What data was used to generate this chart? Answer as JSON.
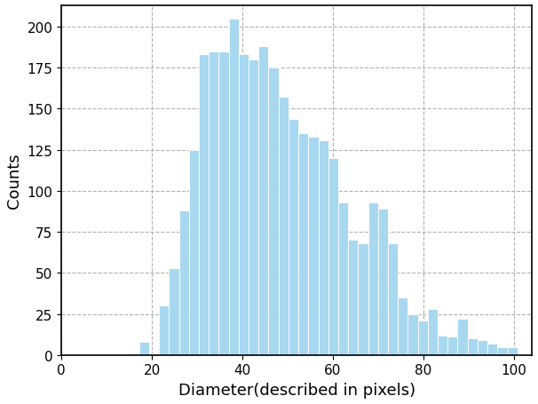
{
  "bar_heights": [
    1,
    8,
    1,
    30,
    53,
    88,
    125,
    183,
    185,
    185,
    205,
    183,
    180,
    188,
    175,
    157,
    144,
    135,
    133,
    131,
    120,
    93,
    70,
    68,
    93,
    89,
    68,
    35,
    25,
    21,
    28,
    12,
    11,
    22,
    10,
    9,
    7,
    5,
    5
  ],
  "bin_start": 15,
  "bin_width": 2.2,
  "bar_color": "#a8d8f0",
  "bar_edgecolor": "white",
  "xlabel": "Diameter(described in pixels)",
  "ylabel": "Counts",
  "xlim": [
    0,
    104
  ],
  "ylim": [
    0,
    213
  ],
  "xticks": [
    0,
    20,
    40,
    60,
    80,
    100
  ],
  "yticks": [
    0,
    25,
    50,
    75,
    100,
    125,
    150,
    175,
    200
  ],
  "grid_color": "#aaaaaa",
  "grid_linestyle": "--",
  "grid_alpha": 0.9,
  "background_color": "white",
  "xlabel_fontsize": 13,
  "ylabel_fontsize": 13,
  "tick_fontsize": 11,
  "spine_linewidth": 1.2,
  "figsize": [
    6.06,
    4.56
  ],
  "dpi": 100
}
